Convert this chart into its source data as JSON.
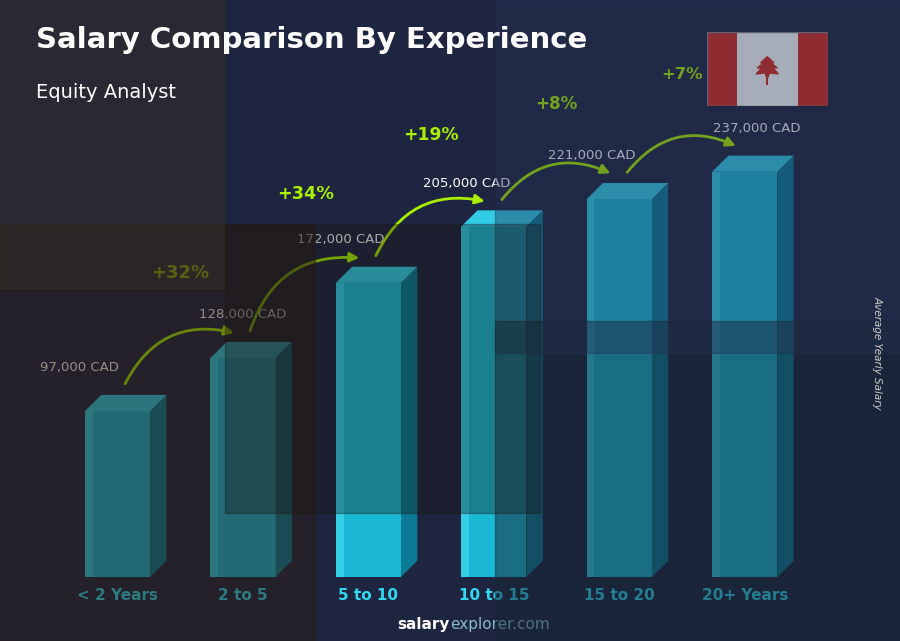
{
  "title": "Salary Comparison By Experience",
  "subtitle": "Equity Analyst",
  "ylabel": "Average Yearly Salary",
  "categories": [
    "< 2 Years",
    "2 to 5",
    "5 to 10",
    "10 to 15",
    "15 to 20",
    "20+ Years"
  ],
  "values": [
    97000,
    128000,
    172000,
    205000,
    221000,
    237000
  ],
  "value_labels": [
    "97,000 CAD",
    "128,000 CAD",
    "172,000 CAD",
    "205,000 CAD",
    "221,000 CAD",
    "237,000 CAD"
  ],
  "pct_changes": [
    "+32%",
    "+34%",
    "+19%",
    "+8%",
    "+7%"
  ],
  "bar_front": "#1ab8d4",
  "bar_light": "#40d8f0",
  "bar_side": "#0a7a96",
  "bar_top": "#30cce6",
  "bg_color": "#1a2035",
  "overlay_color": "#0d1520",
  "title_color": "#ffffff",
  "subtitle_color": "#ffffff",
  "label_color": "#ffffff",
  "pct_color": "#aaee00",
  "arrow_color": "#aaee00",
  "cat_label_color": "#30d8f0",
  "footer_salary_color": "#ffffff",
  "footer_explorer_color": "#aaccdd",
  "ylabel_color": "#cccccc"
}
